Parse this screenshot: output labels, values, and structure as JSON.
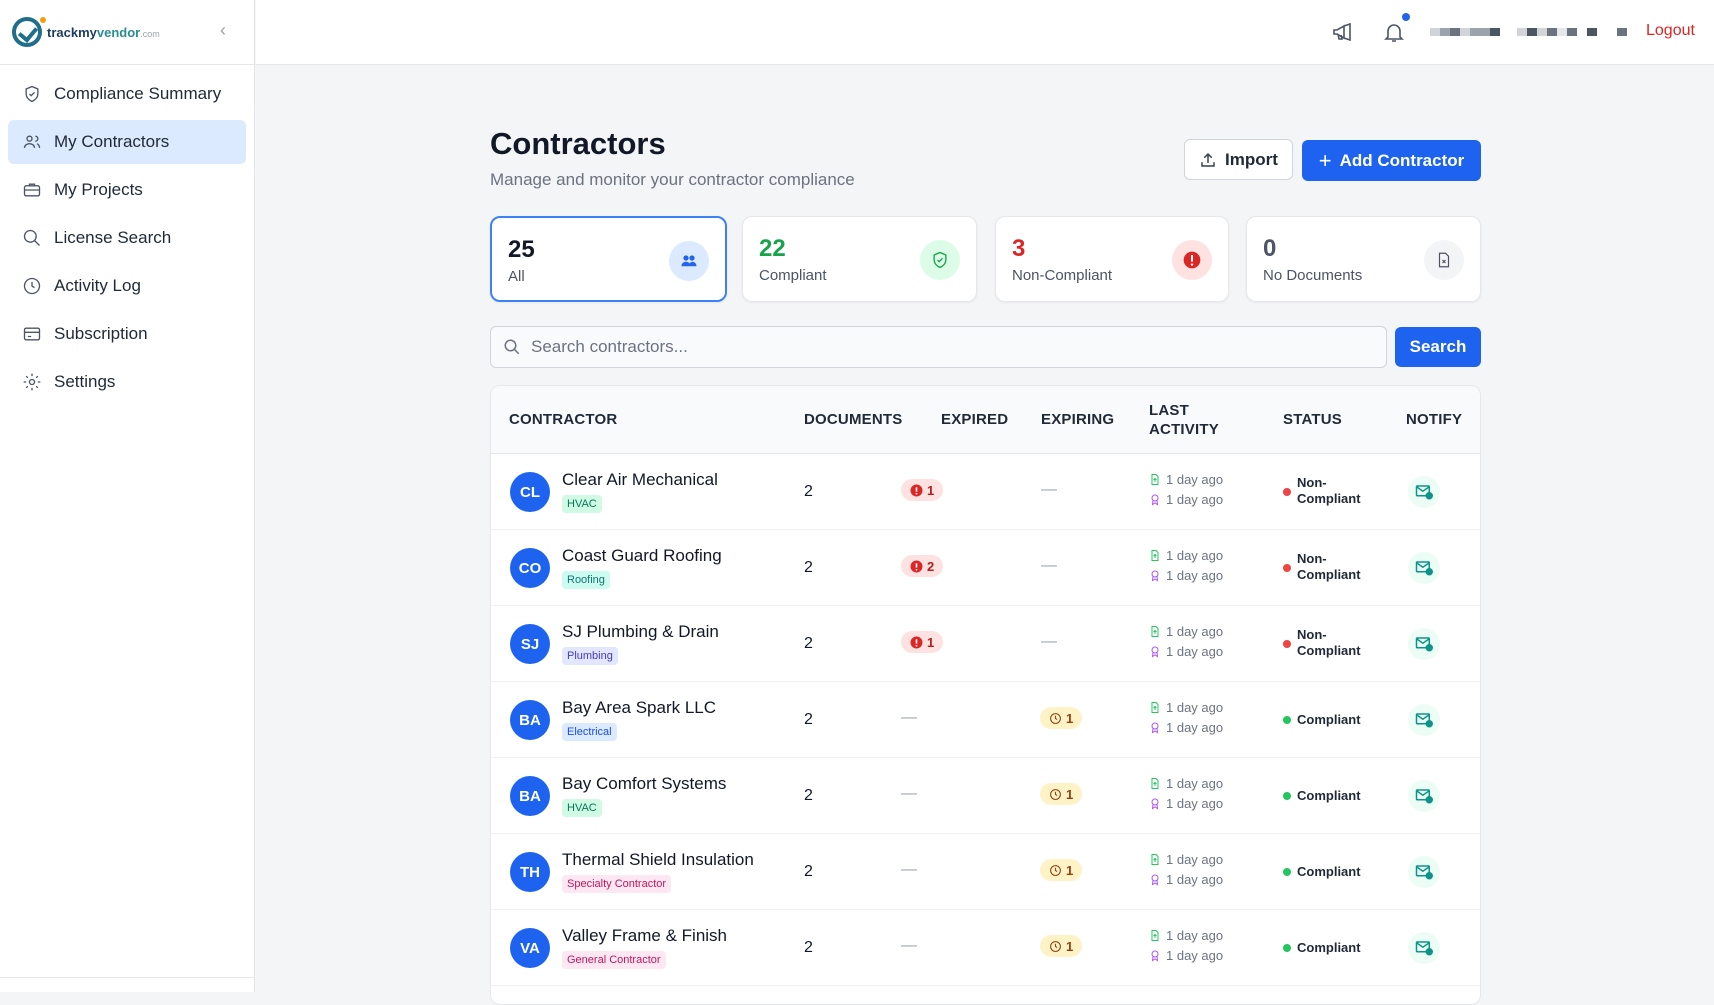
{
  "brand": {
    "name_a": "trackmy",
    "name_b": "vendor",
    "name_c": ".com"
  },
  "sidebar": {
    "items": [
      {
        "label": "Compliance Summary",
        "icon": "shield-icon",
        "active": false
      },
      {
        "label": "My Contractors",
        "icon": "users-icon",
        "active": true
      },
      {
        "label": "My Projects",
        "icon": "briefcase-icon",
        "active": false
      },
      {
        "label": "License Search",
        "icon": "search-icon",
        "active": false
      },
      {
        "label": "Activity Log",
        "icon": "clock-icon",
        "active": false
      },
      {
        "label": "Subscription",
        "icon": "credit-card-icon",
        "active": false
      },
      {
        "label": "Settings",
        "icon": "gear-icon",
        "active": false
      }
    ]
  },
  "topbar": {
    "logout": "Logout"
  },
  "page": {
    "title": "Contractors",
    "subtitle": "Manage and monitor your contractor compliance",
    "import": "Import",
    "add": "Add Contractor"
  },
  "cards": [
    {
      "count": "25",
      "label": "All",
      "color": "#111827"
    },
    {
      "count": "22",
      "label": "Compliant",
      "color": "#16a34a"
    },
    {
      "count": "3",
      "label": "Non-Compliant",
      "color": "#dc2626"
    },
    {
      "count": "0",
      "label": "No Documents",
      "color": "#4b5563"
    }
  ],
  "search": {
    "placeholder": "Search contractors...",
    "value": "",
    "button": "Search"
  },
  "table": {
    "headers": {
      "contractor": "CONTRACTOR",
      "documents": "DOCUMENTS",
      "expired": "EXPIRED",
      "expiring": "EXPIRING",
      "last_activity_1": "LAST",
      "last_activity_2": "ACTIVITY",
      "status": "STATUS",
      "notify": "NOTIFY"
    },
    "rows": [
      {
        "initials": "CL",
        "name": "Clear Air Mechanical",
        "tag": "HVAC",
        "tag_type": "hvac",
        "documents": "2",
        "expired": "1",
        "expiring": "—",
        "upload": "1 day ago",
        "license": "1 day ago",
        "status_1": "Non-",
        "status_2": "Compliant",
        "ok": false
      },
      {
        "initials": "CO",
        "name": "Coast Guard Roofing",
        "tag": "Roofing",
        "tag_type": "roof",
        "documents": "2",
        "expired": "2",
        "expiring": "—",
        "upload": "1 day ago",
        "license": "1 day ago",
        "status_1": "Non-",
        "status_2": "Compliant",
        "ok": false
      },
      {
        "initials": "SJ",
        "name": "SJ Plumbing & Drain",
        "tag": "Plumbing",
        "tag_type": "plumb",
        "documents": "2",
        "expired": "1",
        "expiring": "—",
        "upload": "1 day ago",
        "license": "1 day ago",
        "status_1": "Non-",
        "status_2": "Compliant",
        "ok": false
      },
      {
        "initials": "BA",
        "name": "Bay Area Spark LLC",
        "tag": "Electrical",
        "tag_type": "elec",
        "documents": "2",
        "expired": "—",
        "expiring": "1",
        "upload": "1 day ago",
        "license": "1 day ago",
        "status_1": "Compliant",
        "status_2": "",
        "ok": true
      },
      {
        "initials": "BA",
        "name": "Bay Comfort Systems",
        "tag": "HVAC",
        "tag_type": "hvac",
        "documents": "2",
        "expired": "—",
        "expiring": "1",
        "upload": "1 day ago",
        "license": "1 day ago",
        "status_1": "Compliant",
        "status_2": "",
        "ok": true
      },
      {
        "initials": "TH",
        "name": "Thermal Shield Insulation",
        "tag": "Specialty Contractor",
        "tag_type": "pink",
        "documents": "2",
        "expired": "—",
        "expiring": "1",
        "upload": "1 day ago",
        "license": "1 day ago",
        "status_1": "Compliant",
        "status_2": "",
        "ok": true
      },
      {
        "initials": "VA",
        "name": "Valley Frame & Finish",
        "tag": "General Contractor",
        "tag_type": "pink",
        "documents": "2",
        "expired": "—",
        "expiring": "1",
        "upload": "1 day ago",
        "license": "1 day ago",
        "status_1": "Compliant",
        "status_2": "",
        "ok": true
      }
    ]
  }
}
